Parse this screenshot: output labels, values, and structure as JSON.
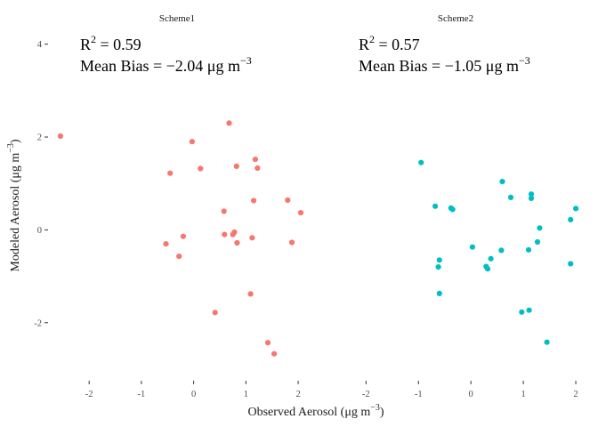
{
  "chart_data": {
    "type": "scatter",
    "xlabel": "Observed Aerosol (μg m^-3)",
    "ylabel": "Modeled Aerosol (μg m^-3)",
    "xlim": [
      -2.65,
      2.05
    ],
    "ylim": [
      -3.25,
      4.3
    ],
    "x_ticks": [
      -2,
      -1,
      0,
      1,
      2
    ],
    "y_ticks": [
      -2,
      0,
      2,
      4
    ],
    "grid": false,
    "legend": "none",
    "panels": [
      {
        "title": "Scheme1",
        "color": "#F8766D",
        "annotation": {
          "r2": "0.59",
          "bias": "-2.04"
        },
        "points": [
          [
            -2.55,
            2.02
          ],
          [
            0.68,
            2.3
          ],
          [
            -0.03,
            1.9
          ],
          [
            1.18,
            1.52
          ],
          [
            0.82,
            1.37
          ],
          [
            1.22,
            1.33
          ],
          [
            0.13,
            1.32
          ],
          [
            -0.45,
            1.22
          ],
          [
            1.15,
            0.63
          ],
          [
            1.8,
            0.64
          ],
          [
            0.58,
            0.4
          ],
          [
            2.05,
            0.37
          ],
          [
            0.78,
            -0.05
          ],
          [
            0.75,
            -0.1
          ],
          [
            0.59,
            -0.1
          ],
          [
            -0.2,
            -0.14
          ],
          [
            1.12,
            -0.17
          ],
          [
            0.83,
            -0.28
          ],
          [
            1.88,
            -0.27
          ],
          [
            -0.53,
            -0.3
          ],
          [
            -0.28,
            -0.57
          ],
          [
            1.09,
            -1.38
          ],
          [
            0.41,
            -1.78
          ],
          [
            1.42,
            -2.43
          ],
          [
            1.54,
            -2.67
          ]
        ]
      },
      {
        "title": "Scheme2",
        "color": "#00BFC4",
        "annotation": {
          "r2": "0.57",
          "bias": "-1.05"
        },
        "points": [
          [
            -0.95,
            1.45
          ],
          [
            0.6,
            1.04
          ],
          [
            1.15,
            0.77
          ],
          [
            1.15,
            0.68
          ],
          [
            0.76,
            0.7
          ],
          [
            -0.68,
            0.51
          ],
          [
            -0.38,
            0.47
          ],
          [
            -0.35,
            0.44
          ],
          [
            2.0,
            0.46
          ],
          [
            1.31,
            0.04
          ],
          [
            1.9,
            0.22
          ],
          [
            0.03,
            -0.37
          ],
          [
            0.58,
            -0.44
          ],
          [
            1.1,
            -0.43
          ],
          [
            1.27,
            -0.26
          ],
          [
            -0.6,
            -0.65
          ],
          [
            0.38,
            -0.62
          ],
          [
            -0.62,
            -0.8
          ],
          [
            0.29,
            -0.79
          ],
          [
            0.32,
            -0.84
          ],
          [
            1.9,
            -0.73
          ],
          [
            -0.6,
            -1.37
          ],
          [
            1.11,
            -1.73
          ],
          [
            0.97,
            -1.77
          ],
          [
            1.45,
            -2.42
          ]
        ]
      }
    ]
  }
}
